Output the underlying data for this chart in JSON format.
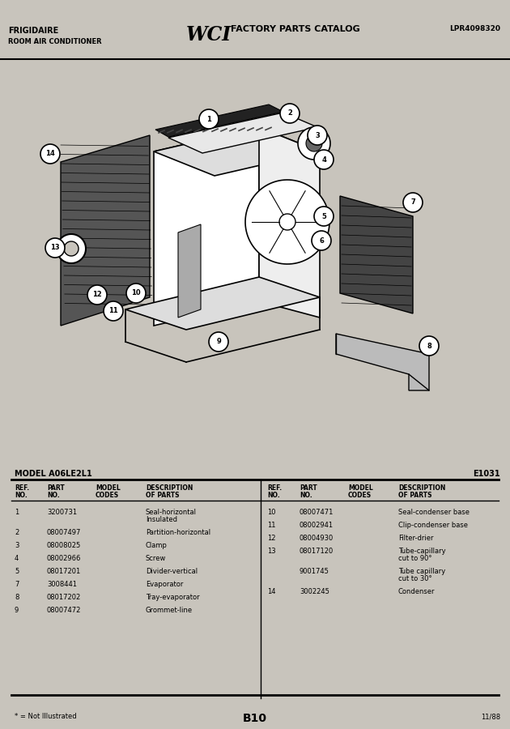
{
  "title_left1": "FRIGIDAIRE",
  "title_left2": "ROOM AIR CONDITIONER",
  "title_center": "FACTORY PARTS CATALOG",
  "title_right": "LPR4098320",
  "logo_text": "WCI",
  "model": "MODEL A06LE2L1",
  "diagram_ref": "E1031",
  "page_num": "B10",
  "date": "11/88",
  "footnote": "* = Not Illustrated",
  "bg_color": "#c8c4bc",
  "left_parts": [
    [
      "1",
      "3200731",
      "",
      "Seal-horizontal\nInsulated"
    ],
    [
      "2",
      "08007497",
      "",
      "Partition-horizontal"
    ],
    [
      "3",
      "08008025",
      "",
      "Clamp"
    ],
    [
      "4",
      "08002966",
      "",
      "Screw"
    ],
    [
      "5",
      "08017201",
      "",
      "Divider-vertical"
    ],
    [
      "7",
      "3008441",
      "",
      "Evaporator"
    ],
    [
      "8",
      "08017202",
      "",
      "Tray-evaporator"
    ],
    [
      "9",
      "08007472",
      "",
      "Grommet-line"
    ]
  ],
  "right_parts": [
    [
      "10",
      "08007471",
      "",
      "Seal-condenser base"
    ],
    [
      "11",
      "08002941",
      "",
      "Clip-condenser base"
    ],
    [
      "12",
      "08004930",
      "",
      "Filter-drier"
    ],
    [
      "13",
      "08017120",
      "",
      "Tube-capillary\ncut to 90°"
    ],
    [
      "",
      "9001745",
      "",
      "Tube capillary\ncut to 30°"
    ],
    [
      "14",
      "3002245",
      "",
      "Condenser"
    ]
  ]
}
